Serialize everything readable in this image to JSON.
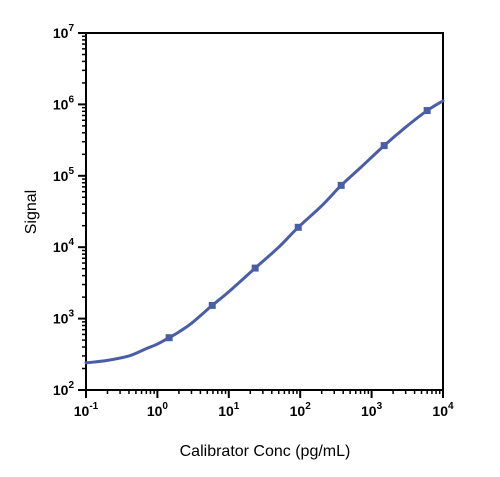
{
  "chart_data": {
    "type": "line",
    "title": "",
    "xlabel": "Calibrator Conc (pg/mL)",
    "ylabel": "Signal",
    "x_scale": "log",
    "y_scale": "log",
    "xlim": [
      0.1,
      10000
    ],
    "ylim": [
      100,
      10000000
    ],
    "x_ticks": [
      {
        "base": "10",
        "exp": "-1"
      },
      {
        "base": "10",
        "exp": "0"
      },
      {
        "base": "10",
        "exp": "1"
      },
      {
        "base": "10",
        "exp": "2"
      },
      {
        "base": "10",
        "exp": "3"
      },
      {
        "base": "10",
        "exp": "4"
      }
    ],
    "y_ticks": [
      {
        "base": "10",
        "exp": "2"
      },
      {
        "base": "10",
        "exp": "3"
      },
      {
        "base": "10",
        "exp": "4"
      },
      {
        "base": "10",
        "exp": "5"
      },
      {
        "base": "10",
        "exp": "6"
      },
      {
        "base": "10",
        "exp": "7"
      }
    ],
    "grid": false,
    "line_color": "#4a5ea8",
    "series": [
      {
        "x": [
          1.46,
          5.86,
          23.4,
          93.8,
          375,
          1500,
          6000
        ],
        "y": [
          540,
          1530,
          5100,
          19000,
          73500,
          265000,
          820000
        ],
        "marker": "square"
      }
    ],
    "fit_curve": {
      "x": [
        0.1,
        0.2,
        0.4,
        0.7,
        1,
        1.46,
        2,
        3,
        5.86,
        10,
        23.4,
        50,
        93.8,
        200,
        375,
        700,
        1500,
        3000,
        6000,
        10000
      ],
      "y": [
        240,
        260,
        300,
        380,
        440,
        540,
        650,
        860,
        1530,
        2380,
        5100,
        10000,
        19000,
        38000,
        73500,
        130000,
        265000,
        480000,
        820000,
        1120000
      ]
    }
  }
}
